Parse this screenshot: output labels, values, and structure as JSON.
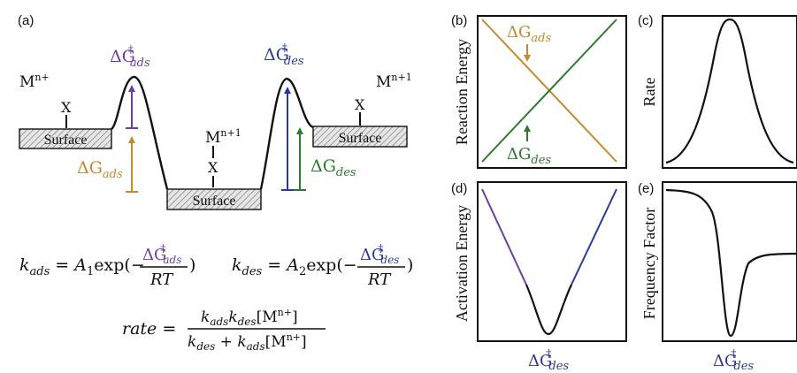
{
  "colors": {
    "ads": "#c8882e",
    "des": "#2c7a2c",
    "act_ads": "#6b3fa0",
    "act_des": "#2a3a9a",
    "black": "#111111",
    "hatch": "#bdbdbd"
  },
  "panel_a": {
    "label": "(a)",
    "metal_left": "M",
    "metal_left_sup": "n+",
    "metal_mid": "M",
    "metal_mid_sup": "n+1",
    "metal_right": "M",
    "metal_right_sup": "n+1",
    "x_label": "X",
    "surface_label": "Surface",
    "dg_ads_ts_base": "ΔG",
    "dg_ads_ts_sup": "‡",
    "dg_ads_ts_sub": "ads",
    "dg_des_ts_base": "ΔG",
    "dg_des_ts_sup": "‡",
    "dg_des_ts_sub": "des",
    "dg_ads_base": "ΔG",
    "dg_ads_sub": "ads",
    "dg_des_base": "ΔG",
    "dg_des_sub": "des"
  },
  "equations": {
    "k_ads_lhs": "k",
    "k_ads_lhs_sub": "ads",
    "k_ads_eq": " = ",
    "k_ads_A": "A",
    "k_ads_A_sub": "1",
    "k_ads_exp": "exp(−",
    "k_ads_num": "ΔG",
    "k_ads_num_sup": "‡",
    "k_ads_num_sub": "ads",
    "k_ads_den": "RT",
    "k_ads_close": ")",
    "k_des_lhs": "k",
    "k_des_lhs_sub": "des",
    "k_des_eq": " = ",
    "k_des_A": "A",
    "k_des_A_sub": "2",
    "k_des_exp": "exp(−",
    "k_des_num": "ΔG",
    "k_des_num_sup": "‡",
    "k_des_num_sub": "des",
    "k_des_den": "RT",
    "k_des_close": ")",
    "rate_lhs": "rate",
    "rate_eq": " = ",
    "rate_num": "k",
    "rate_num_sub1": "ads",
    "rate_num_k2": "k",
    "rate_num_sub2": "des",
    "rate_num_bracket": "[M",
    "rate_num_sup": "n+",
    "rate_num_close": "]",
    "rate_den_k1": "k",
    "rate_den_sub1": "des",
    "rate_den_plus": " + ",
    "rate_den_k2": "k",
    "rate_den_sub2": "ads",
    "rate_den_bracket": "[M",
    "rate_den_sup": "n+",
    "rate_den_close": "]"
  },
  "panel_b": {
    "label": "(b)",
    "ylabel": "Reaction Energy",
    "ann_ads_base": "ΔG",
    "ann_ads_sub": "ads",
    "ann_des_base": "ΔG",
    "ann_des_sub": "des"
  },
  "panel_c": {
    "label": "(c)",
    "ylabel": "Rate"
  },
  "panel_d": {
    "label": "(d)",
    "ylabel": "Activation Energy",
    "xlabel_base": "ΔG",
    "xlabel_sup": "‡",
    "xlabel_sub": "des"
  },
  "panel_e": {
    "label": "(e)",
    "ylabel": "Frequency Factor",
    "xlabel_base": "ΔG",
    "xlabel_sup": "‡",
    "xlabel_sub": "des"
  }
}
